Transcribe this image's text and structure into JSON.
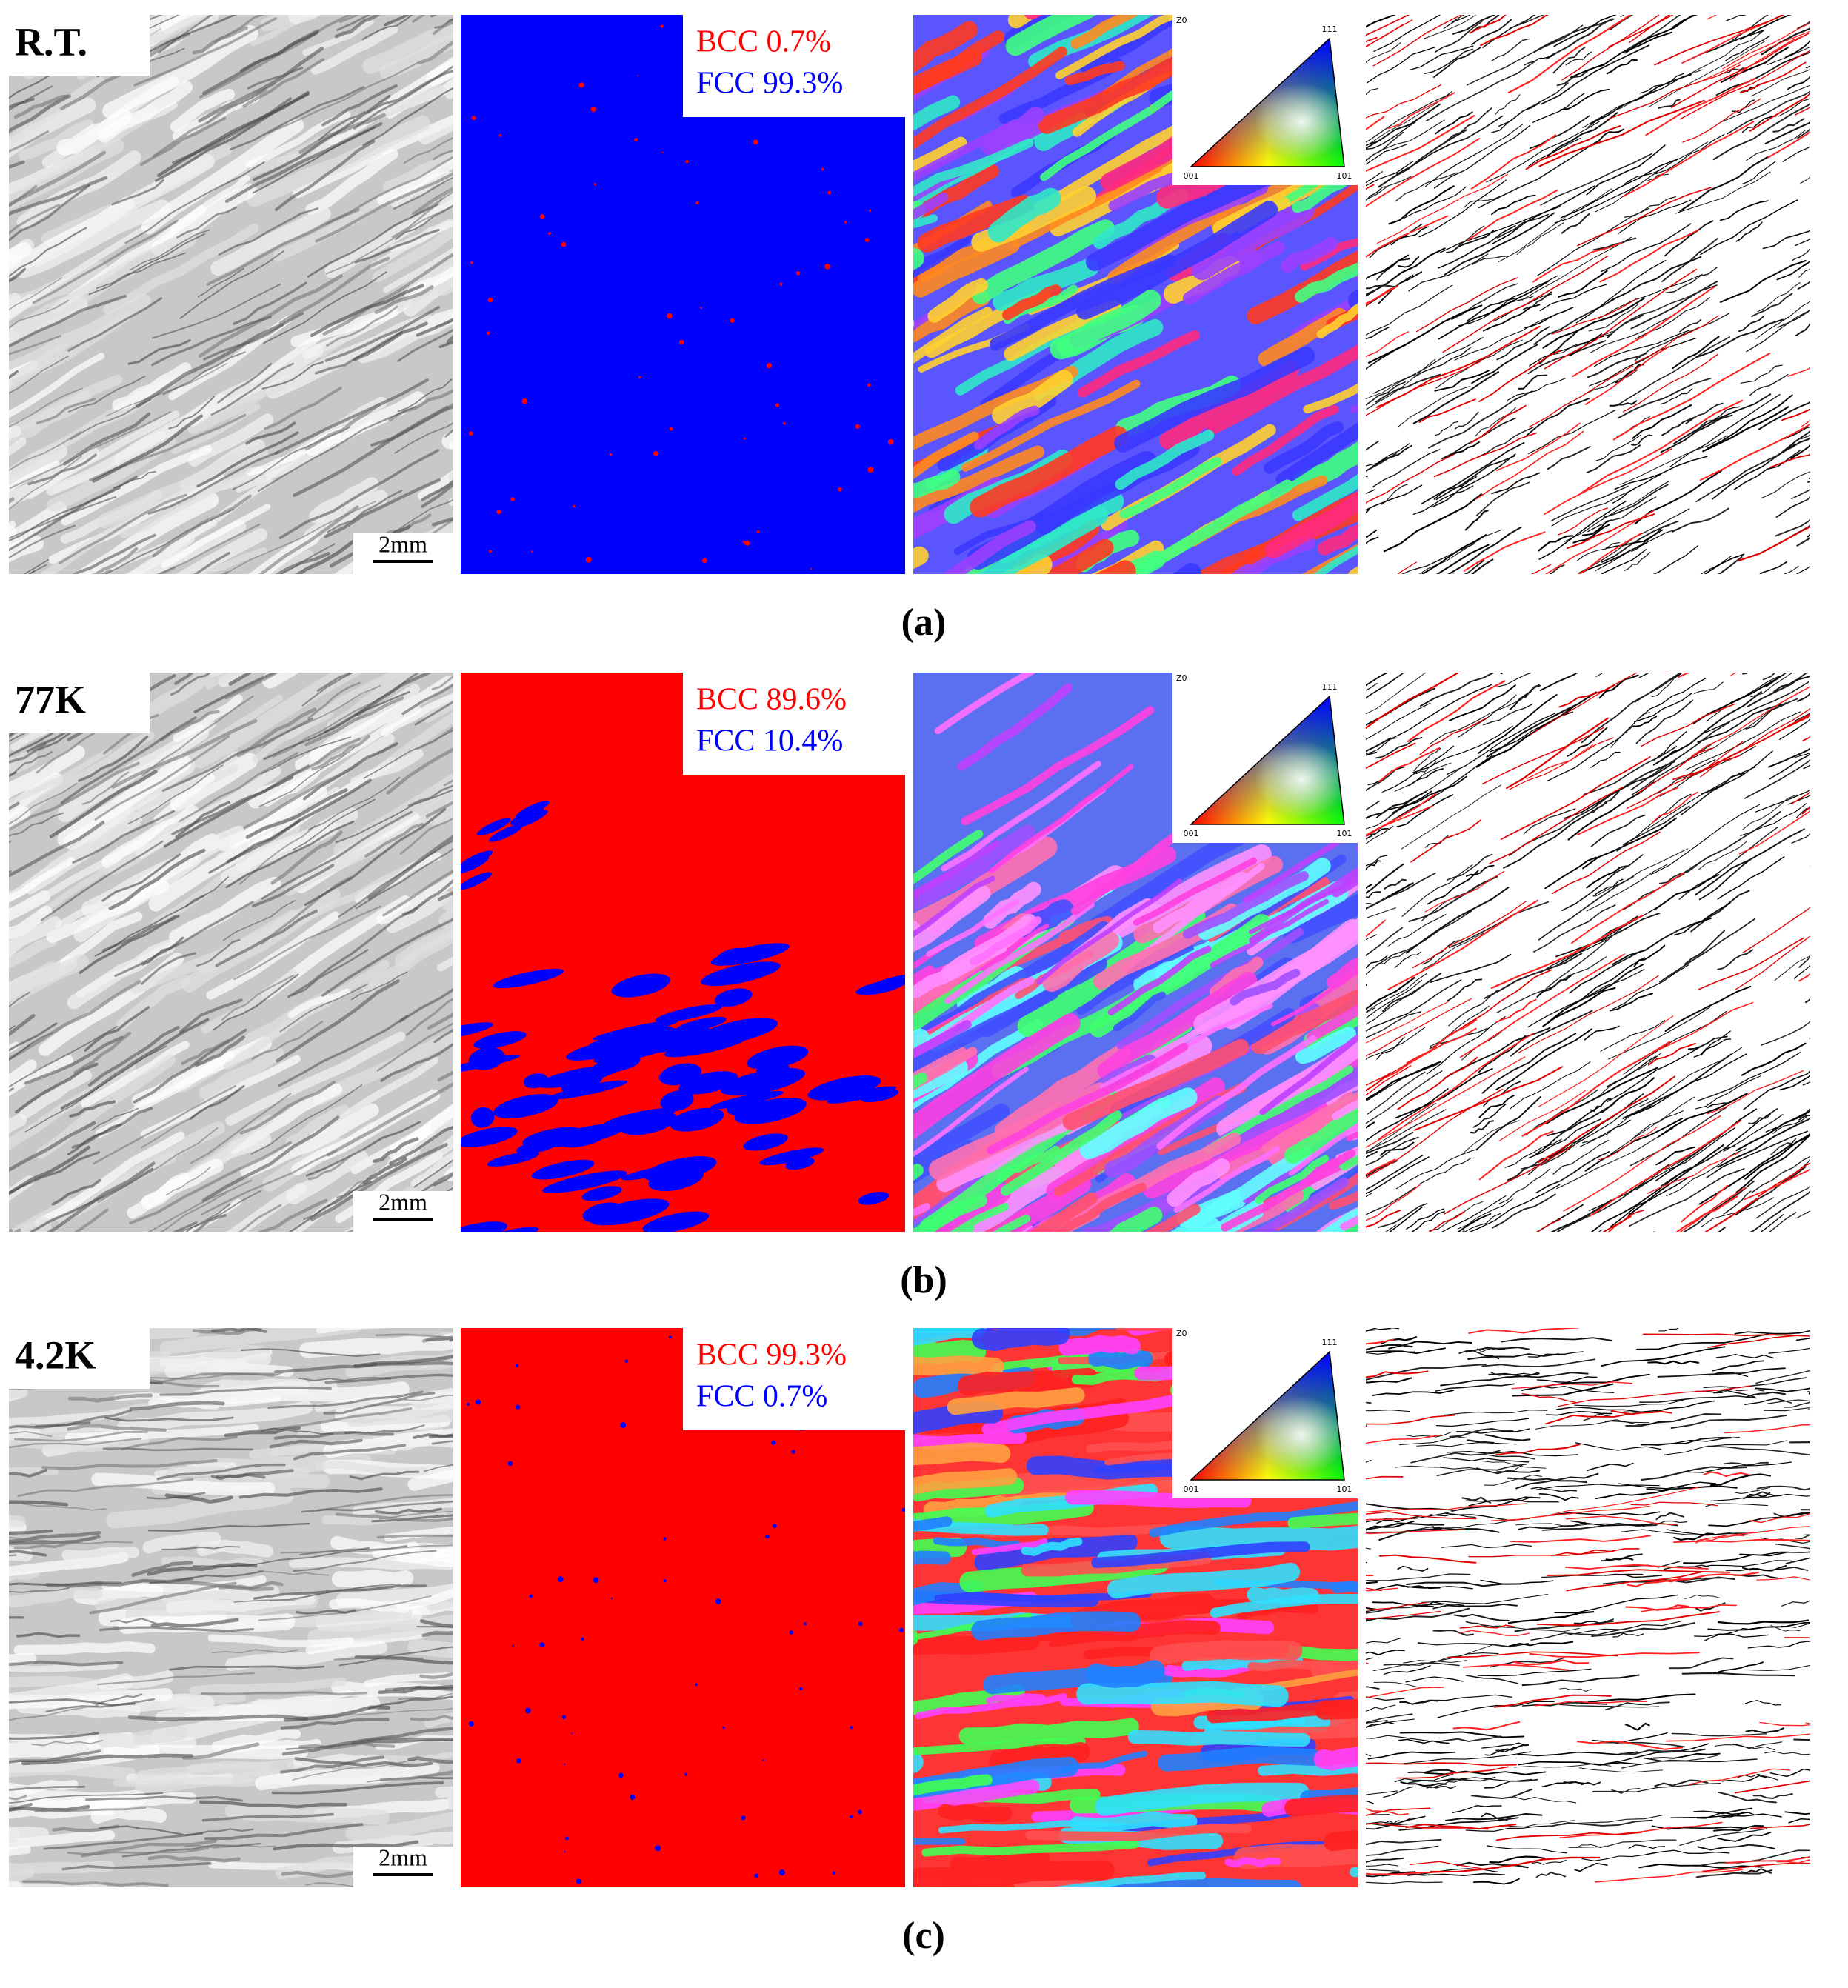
{
  "rows": [
    {
      "label": "R.T.",
      "bcc": "BCC  0.7%",
      "fcc": "FCC  99.3%",
      "scale_bar": "2mm",
      "ipf": {
        "z": "Z0",
        "top": "111",
        "left": "001",
        "right": "101"
      },
      "caption": "(a)"
    },
    {
      "label": "77K",
      "bcc": "BCC  89.6%",
      "fcc": "FCC  10.4%",
      "scale_bar": "2mm",
      "ipf": {
        "z": "Z0",
        "top": "111",
        "left": "001",
        "right": "101"
      },
      "caption": "(b)"
    },
    {
      "label": "4.2K",
      "bcc": "BCC  99.3%",
      "fcc": "FCC  0.7%",
      "scale_bar": "2mm",
      "ipf": {
        "z": "Z0",
        "top": "111",
        "left": "001",
        "right": "101"
      },
      "caption": "(c)"
    }
  ]
}
